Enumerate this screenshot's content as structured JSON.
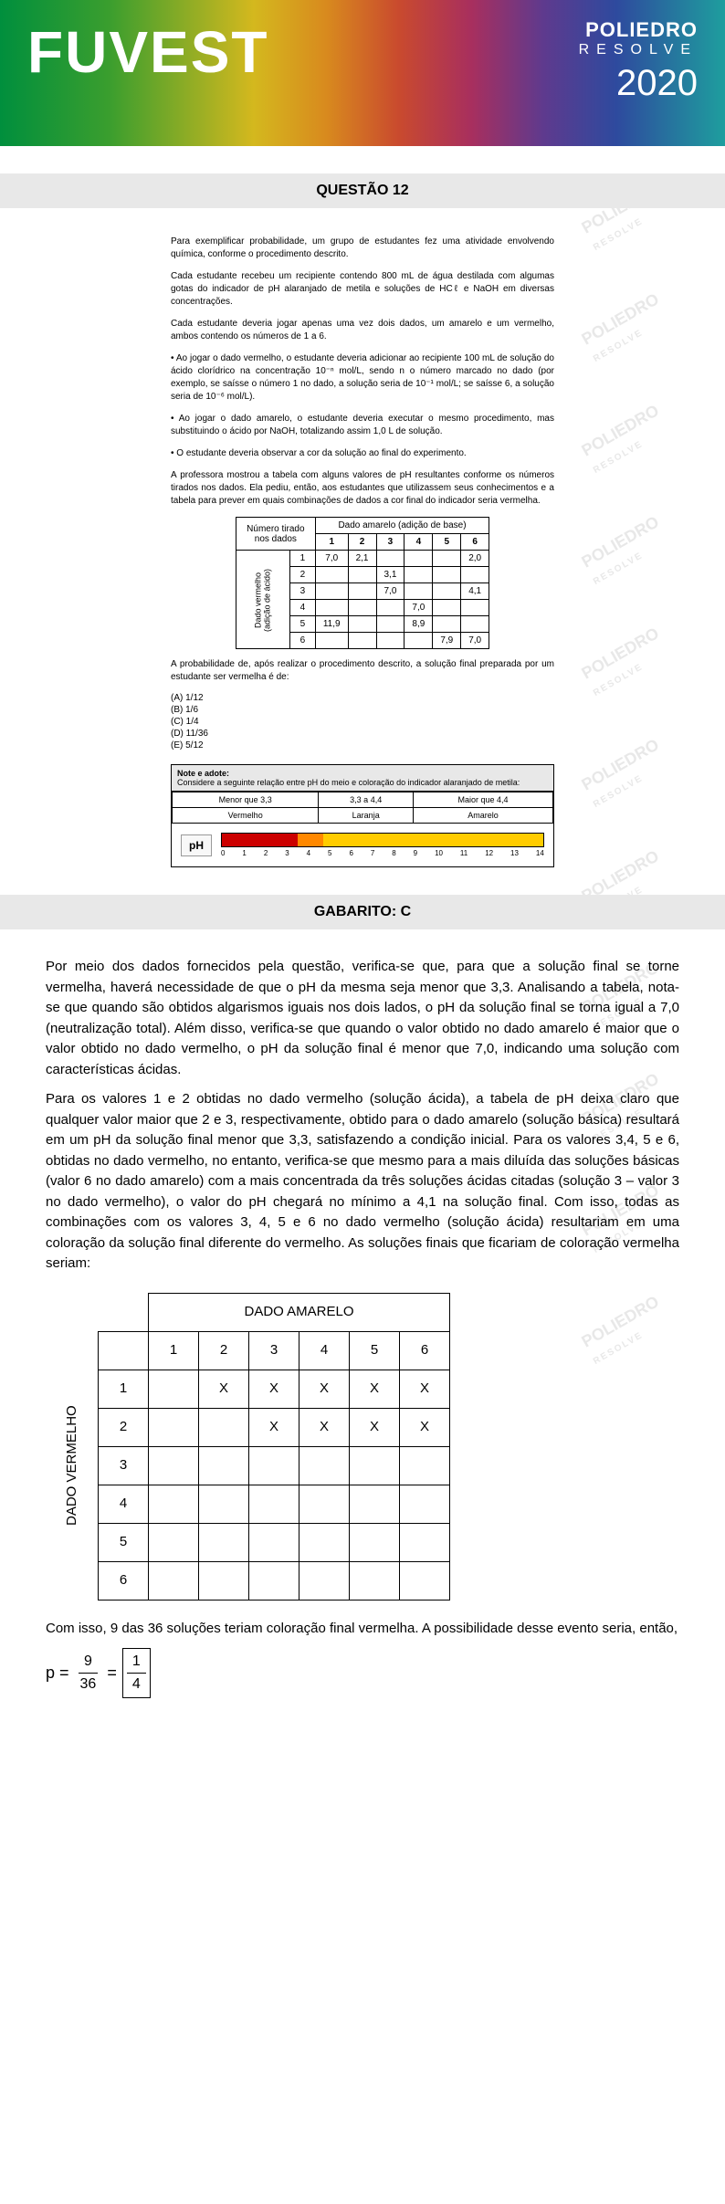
{
  "header": {
    "examName": "FUVEST",
    "brand": "POLIEDRO",
    "brandSub": "RESOLVE",
    "year": "2020",
    "gradient": [
      "#008f3d",
      "#d4b81e",
      "#c94a2e",
      "#5e3a8e",
      "#1e9e9e"
    ]
  },
  "question": {
    "title": "QUESTÃO 12",
    "p1": "Para exemplificar probabilidade, um grupo de estudantes fez uma atividade envolvendo química, conforme o procedimento descrito.",
    "p2": "Cada estudante recebeu um recipiente contendo 800 mL de água destilada com algumas gotas do indicador de pH alaranjado de metila e soluções de HCℓ e NaOH em diversas concentrações.",
    "p3": "Cada estudante deveria jogar apenas uma vez dois dados, um amarelo e um vermelho, ambos contendo os números de 1 a 6.",
    "p4": "• Ao jogar o dado vermelho, o estudante deveria adicionar ao recipiente 100 mL de solução do ácido clorídrico na concentração 10⁻ⁿ mol/L, sendo n o número marcado no dado (por exemplo, se saísse o número 1 no dado, a solução seria de 10⁻¹ mol/L; se saísse 6, a solução seria de 10⁻⁶ mol/L).",
    "p5": "• Ao jogar o dado amarelo, o estudante deveria executar o mesmo procedimento, mas substituindo o ácido por NaOH, totalizando assim 1,0 L de solução.",
    "p6": "• O estudante deveria observar a cor da solução ao final do experimento.",
    "p7": "A professora mostrou a tabela com alguns valores de pH resultantes conforme os números tirados nos dados. Ela pediu, então, aos estudantes que utilizassem seus conhecimentos e a tabela para prever em quais combinações de dados a cor final do indicador seria vermelha.",
    "tableHeader": {
      "colGroup": "Dado amarelo (adição de base)",
      "rowGroup": "Dado vermelho\n(adição de ácido)",
      "corner": "Número tirado\nnos dados",
      "cols": [
        "1",
        "2",
        "3",
        "4",
        "5",
        "6"
      ]
    },
    "tableRows": [
      {
        "label": "1",
        "cells": [
          "7,0",
          "2,1",
          "",
          "",
          "",
          "2,0"
        ]
      },
      {
        "label": "2",
        "cells": [
          "",
          "",
          "3,1",
          "",
          "",
          ""
        ]
      },
      {
        "label": "3",
        "cells": [
          "",
          "",
          "7,0",
          "",
          "",
          "4,1"
        ]
      },
      {
        "label": "4",
        "cells": [
          "",
          "",
          "",
          "7,0",
          "",
          ""
        ]
      },
      {
        "label": "5",
        "cells": [
          "11,9",
          "",
          "",
          "8,9",
          "",
          ""
        ]
      },
      {
        "label": "6",
        "cells": [
          "",
          "",
          "",
          "",
          "7,9",
          "7,0"
        ]
      }
    ],
    "probText": "A probabilidade de, após realizar o procedimento descrito, a solução final preparada por um estudante ser vermelha é de:",
    "options": [
      "(A) 1/12",
      "(B) 1/6",
      "(C) 1/4",
      "(D) 11/36",
      "(E) 5/12"
    ],
    "note": {
      "title": "Note e adote:",
      "subtitle": "Considere a seguinte relação entre pH do meio e coloração do indicador alaranjado de metila:",
      "headers": [
        "Menor que 3,3",
        "3,3 a 4,4",
        "Maior que 4,4"
      ],
      "colors": [
        "Vermelho",
        "Laranja",
        "Amarelo"
      ],
      "phLabel": "pH",
      "phSegments": [
        {
          "color": "#cc0000",
          "width": 3.3
        },
        {
          "color": "#ff8800",
          "width": 1.1
        },
        {
          "color": "#ffcc00",
          "width": 9.6
        }
      ],
      "phTicks": [
        "0",
        "1",
        "2",
        "3",
        "4",
        "5",
        "6",
        "7",
        "8",
        "9",
        "10",
        "11",
        "12",
        "13",
        "14"
      ]
    }
  },
  "answer": {
    "title": "GABARITO: C",
    "p1": "Por meio dos dados fornecidos pela questão, verifica-se que, para que a solução final se torne vermelha, haverá necessidade de que o pH da mesma seja menor que 3,3. Analisando a tabela, nota-se que quando são obtidos algarismos iguais nos dois lados, o pH da solução final se torna igual a 7,0 (neutralização total). Além disso, verifica-se que quando o valor obtido no dado amarelo é maior que o valor obtido no dado vermelho, o pH da solução final é menor que 7,0, indicando uma solução com características ácidas.",
    "p2": "Para os valores 1 e 2 obtidas no dado vermelho (solução ácida), a tabela de pH deixa claro que qualquer valor maior que 2 e 3, respectivamente, obtido para o dado amarelo (solução básica) resultará em um pH da solução final menor que 3,3, satisfazendo a condição inicial. Para os valores 3,4, 5 e 6, obtidas no dado vermelho, no entanto, verifica-se que mesmo para a mais diluída das soluções básicas (valor 6 no dado amarelo) com a mais concentrada da três soluções ácidas citadas (solução 3 – valor 3 no dado vermelho), o valor do pH chegará no mínimo a 4,1 na solução final. Com isso, todas as combinações com os valores 3, 4, 5 e 6 no dado vermelho (solução ácida) resultariam em uma coloração da solução final diferente do vermelho. As soluções finais que ficariam de coloração vermelha seriam:",
    "tableTop": "DADO AMARELO",
    "tableSide": "DADO VERMELHO",
    "tableCols": [
      "1",
      "2",
      "3",
      "4",
      "5",
      "6"
    ],
    "tableRows": [
      {
        "label": "1",
        "cells": [
          "",
          "X",
          "X",
          "X",
          "X",
          "X"
        ]
      },
      {
        "label": "2",
        "cells": [
          "",
          "",
          "X",
          "X",
          "X",
          "X"
        ]
      },
      {
        "label": "3",
        "cells": [
          "",
          "",
          "",
          "",
          "",
          ""
        ]
      },
      {
        "label": "4",
        "cells": [
          "",
          "",
          "",
          "",
          "",
          ""
        ]
      },
      {
        "label": "5",
        "cells": [
          "",
          "",
          "",
          "",
          "",
          ""
        ]
      },
      {
        "label": "6",
        "cells": [
          "",
          "",
          "",
          "",
          "",
          ""
        ]
      }
    ],
    "conclusion": "Com isso, 9 das 36 soluções teriam coloração final vermelha. A possibilidade desse evento seria, então,",
    "formula": {
      "lhs": "p =",
      "num1": "9",
      "den1": "36",
      "eq": "=",
      "num2": "1",
      "den2": "4"
    }
  },
  "watermark": {
    "brand": "POLIEDRO",
    "sub": "RESOLVE"
  }
}
